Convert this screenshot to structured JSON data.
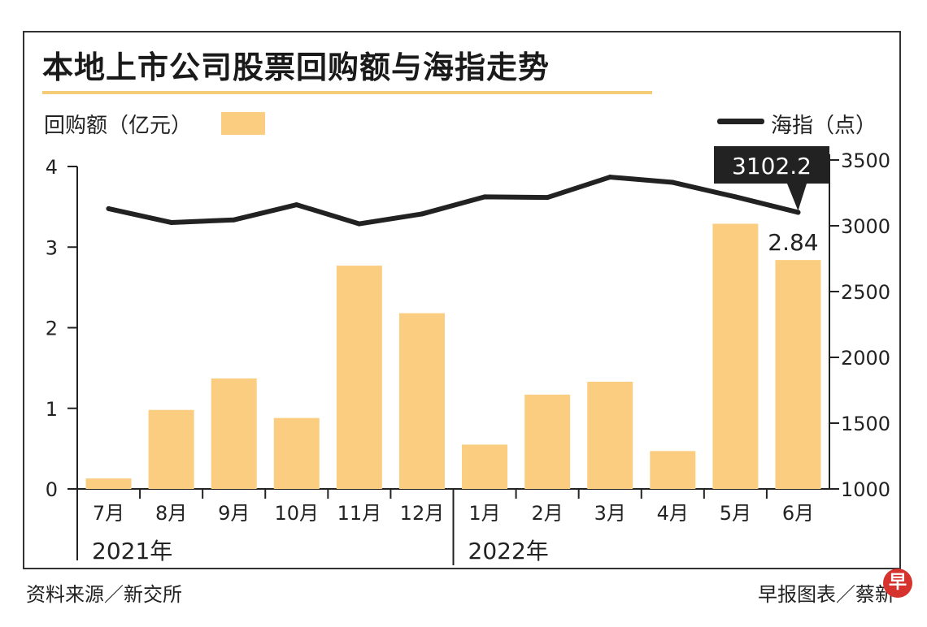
{
  "title": "本地上市公司股票回购额与海指走势",
  "legend": {
    "bars_label": "回购额（亿元）",
    "line_label": "海指（点）"
  },
  "colors": {
    "bar": "#fbcd80",
    "line": "#222222",
    "underline": "#f4cb77",
    "badge": "#d6322e"
  },
  "chart_data": {
    "type": "bar",
    "title": "本地上市公司股票回购额与海指走势",
    "categories": [
      "7月",
      "8月",
      "9月",
      "10月",
      "11月",
      "12月",
      "1月",
      "2月",
      "3月",
      "4月",
      "5月",
      "6月"
    ],
    "year_groups": [
      {
        "label": "2021年",
        "start": 0,
        "end": 5
      },
      {
        "label": "2022年",
        "start": 6,
        "end": 11
      }
    ],
    "series": [
      {
        "name": "回购额（亿元）",
        "type": "bar",
        "axis": "left",
        "values": [
          0.13,
          0.98,
          1.37,
          0.88,
          2.77,
          2.18,
          0.55,
          1.17,
          1.33,
          0.47,
          3.29,
          2.84
        ]
      },
      {
        "name": "海指（点）",
        "type": "line",
        "axis": "right",
        "values": [
          3130,
          3025,
          3045,
          3160,
          3015,
          3090,
          3220,
          3215,
          3370,
          3330,
          3220,
          3102.2
        ]
      }
    ],
    "left_axis": {
      "min": 0,
      "max": 4,
      "ticks": [
        "0",
        "1",
        "2",
        "3",
        "4"
      ]
    },
    "right_axis": {
      "min": 1000,
      "max": 3500,
      "ticks": [
        "1000",
        "1500",
        "2000",
        "2500",
        "3000",
        "3500"
      ]
    },
    "annotations": {
      "bar_last_label": "2.84",
      "line_last_label": "3102.2"
    }
  },
  "footer": {
    "source": "资料来源／新交所",
    "credit": "早报图表／蔡新",
    "badge": "早"
  }
}
